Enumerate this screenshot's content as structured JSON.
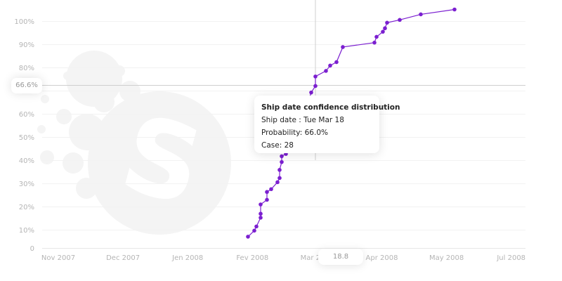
{
  "chart_data": {
    "type": "line",
    "title": "",
    "xlabel": "",
    "ylabel": "",
    "x_ticks": [
      "Nov 2007",
      "Dec 2007",
      "Jen 2008",
      "Fev 2008",
      "Mar 2008",
      "Apr 2008",
      "May 2008",
      "Jul 2008"
    ],
    "y_ticks": [
      "0",
      "10%",
      "20%",
      "30%",
      "40%",
      "50%",
      "60%",
      "70%",
      "80%",
      "90%",
      "100%"
    ],
    "ylim": [
      0,
      108
    ],
    "grid": true,
    "color": "#7b1fd0",
    "series": [
      {
        "points": [
          [
            "2008-02-15",
            7.0
          ],
          [
            "2008-02-18",
            9.6
          ],
          [
            "2008-02-19",
            11.4
          ],
          [
            "2008-02-21",
            15.2
          ],
          [
            "2008-02-21",
            16.9
          ],
          [
            "2008-02-21",
            20.9
          ],
          [
            "2008-02-24",
            22.9
          ],
          [
            "2008-02-24",
            26.3
          ],
          [
            "2008-02-26",
            27.5
          ],
          [
            "2008-02-29",
            30.5
          ],
          [
            "2008-03-01",
            32.3
          ],
          [
            "2008-03-01",
            35.8
          ],
          [
            "2008-03-02",
            39.2
          ],
          [
            "2008-03-02",
            41.7
          ],
          [
            "2008-03-04",
            42.7
          ],
          [
            "2008-03-08",
            50.0
          ],
          [
            "2008-03-12",
            58.0
          ],
          [
            "2008-03-16",
            69.2
          ],
          [
            "2008-03-18",
            72.0
          ],
          [
            "2008-03-18",
            76.1
          ],
          [
            "2008-03-23",
            78.5
          ],
          [
            "2008-03-25",
            80.8
          ],
          [
            "2008-03-28",
            82.3
          ],
          [
            "2008-03-31",
            88.8
          ],
          [
            "2008-04-15",
            90.7
          ],
          [
            "2008-04-16",
            93.2
          ],
          [
            "2008-04-19",
            95.4
          ],
          [
            "2008-04-20",
            96.9
          ],
          [
            "2008-04-21",
            99.3
          ],
          [
            "2008-04-27",
            100.5
          ],
          [
            "2008-05-07",
            102.9
          ],
          [
            "2008-05-23",
            105.0
          ]
        ]
      }
    ],
    "crosshair": {
      "y_label": "66.6%",
      "x_label": "18.8"
    },
    "tooltip": {
      "title": "Ship date confidence distribution",
      "ship_date": "Ship date : Tue Mar 18",
      "probability": "Probability: 66.0%",
      "case": "Case: 28"
    }
  }
}
